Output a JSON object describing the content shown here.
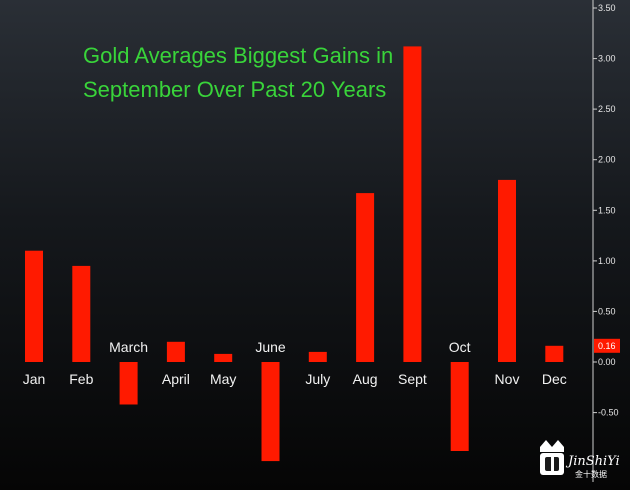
{
  "chart_data": {
    "type": "bar",
    "title_lines": [
      "Gold Averages Biggest Gains in",
      "September Over Past 20 Years"
    ],
    "categories": [
      "Jan",
      "Feb",
      "March",
      "April",
      "May",
      "June",
      "July",
      "Aug",
      "Sept",
      "Oct",
      "Nov",
      "Dec"
    ],
    "values": [
      1.1,
      0.95,
      -0.42,
      0.2,
      0.08,
      -0.98,
      0.1,
      1.67,
      3.12,
      -0.88,
      1.8,
      0.16
    ],
    "y_ticks": [
      "3.50",
      "3.00",
      "2.50",
      "2.00",
      "1.50",
      "1.00",
      "0.50",
      "0.00",
      "-0.50"
    ],
    "ylim": [
      -1.0,
      3.5
    ],
    "last_value_label": "0.16",
    "bar_color": "#ff1a00",
    "title_color": "#39d43a",
    "axis_position": "right",
    "grid": false
  },
  "watermark": {
    "text": "JinShiYi",
    "chinese": "金十数据"
  }
}
